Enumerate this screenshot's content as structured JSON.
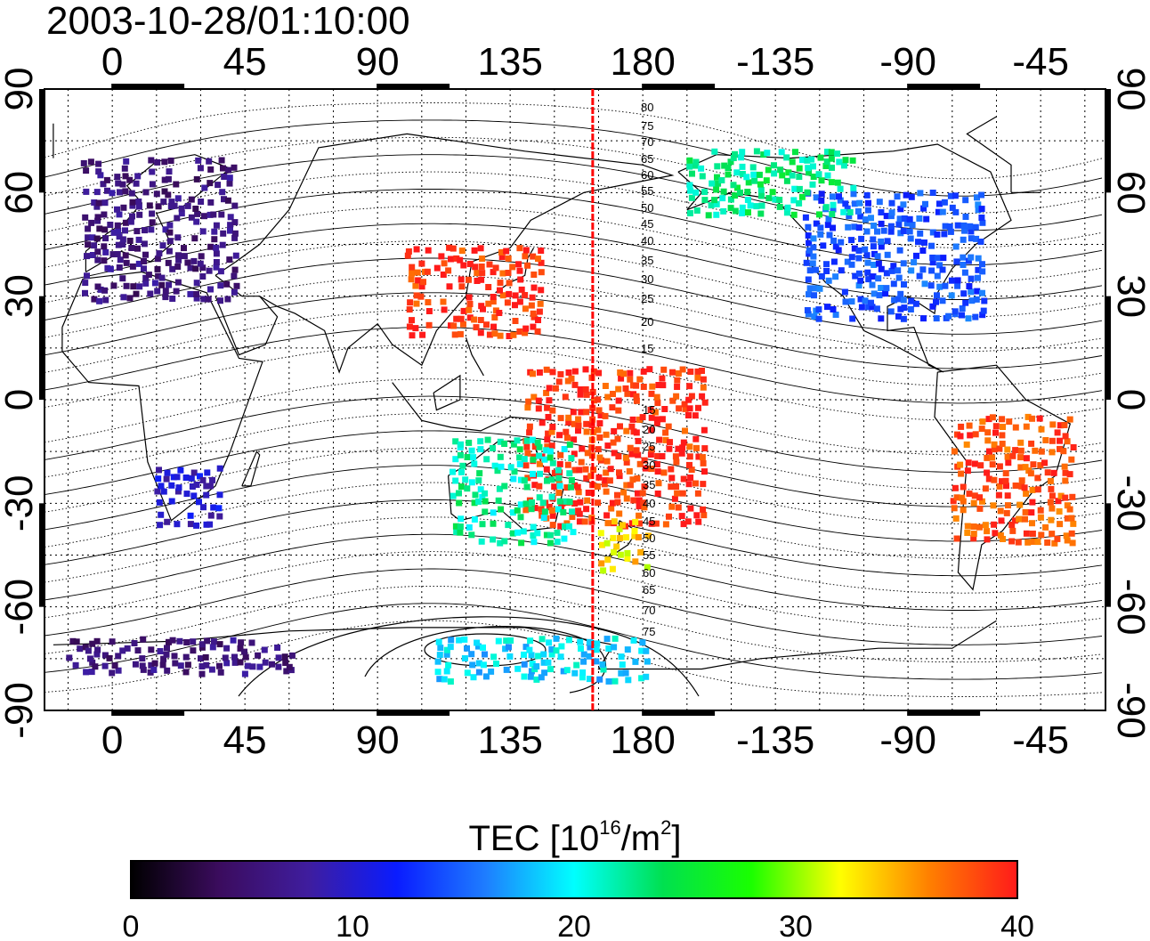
{
  "title": "2003-10-28/01:10:00",
  "map": {
    "x_tick_labels": [
      "0",
      "45",
      "90",
      "135",
      "180",
      "-135",
      "-90",
      "-45"
    ],
    "y_tick_labels": [
      "90",
      "60",
      "30",
      "0",
      "-30",
      "-60",
      "-90"
    ],
    "grid": true,
    "red_line_longitude": 163,
    "magnetic_latitude_labels_north": [
      "80",
      "75",
      "70",
      "65",
      "60",
      "55",
      "50",
      "45",
      "40",
      "35",
      "30",
      "25",
      "20",
      "15"
    ],
    "magnetic_latitude_labels_south": [
      "15",
      "20",
      "25",
      "30",
      "35",
      "40",
      "45",
      "50",
      "55",
      "60",
      "65",
      "70",
      "75"
    ]
  },
  "colorbar": {
    "title_main": "TEC  [10",
    "title_sup1": "16",
    "title_mid": "/m",
    "title_sup2": "2",
    "title_end": "]",
    "tick_labels": [
      "0",
      "10",
      "20",
      "30",
      "40"
    ],
    "min": 0,
    "max": 40,
    "colormap": [
      "#000000",
      "#3b0c5e",
      "#3f1d9e",
      "#0a1cff",
      "#1e7dff",
      "#00ffff",
      "#00e050",
      "#1aff00",
      "#ffff00",
      "#ff8000",
      "#ff1a1a"
    ]
  },
  "tec_regions": [
    {
      "name": "europe",
      "lon": [
        -10,
        40
      ],
      "lat": [
        30,
        70
      ],
      "tec": 6
    },
    {
      "name": "north-america",
      "lon": [
        -125,
        -65
      ],
      "lat": [
        25,
        60
      ],
      "tec": 14
    },
    {
      "name": "alaska-canada",
      "lon": [
        -165,
        -110
      ],
      "lat": [
        55,
        72
      ],
      "tec": 23
    },
    {
      "name": "east-asia",
      "lon": [
        100,
        145
      ],
      "lat": [
        20,
        45
      ],
      "tec": 39
    },
    {
      "name": "west-pacific",
      "lon": [
        140,
        200
      ],
      "lat": [
        -35,
        10
      ],
      "tec": 39
    },
    {
      "name": "australia",
      "lon": [
        115,
        155
      ],
      "lat": [
        -40,
        -12
      ],
      "tec": 22
    },
    {
      "name": "new-zealand",
      "lon": [
        165,
        180
      ],
      "lat": [
        -48,
        -35
      ],
      "tec": 33
    },
    {
      "name": "south-america",
      "lon": [
        -75,
        -35
      ],
      "lat": [
        -40,
        -5
      ],
      "tec": 38
    },
    {
      "name": "south-africa",
      "lon": [
        15,
        35
      ],
      "lat": [
        -35,
        -20
      ],
      "tec": 10
    },
    {
      "name": "antarctica-east",
      "lon": [
        110,
        180
      ],
      "lat": [
        -80,
        -70
      ],
      "tec": 19
    },
    {
      "name": "antarctica-west",
      "lon": [
        -15,
        60
      ],
      "lat": [
        -78,
        -70
      ],
      "tec": 6
    }
  ]
}
